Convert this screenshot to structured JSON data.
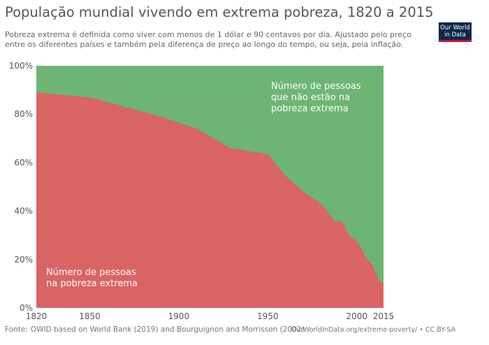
{
  "header": {
    "title": "População mundial vivendo em extrema pobreza, 1820 a 2015",
    "subtitle": "Pobreza extrema é definida como viver com menos de 1 dólar e 90 centavos por dia. Ajustado pelo preço entre os diferentes países e também pela diferença de preço ao longo do tempo, ou seja, pela inflação.",
    "logo_line1": "Our World",
    "logo_line2": "in Data"
  },
  "footer": {
    "source_label": "Fonte:",
    "source_text": "OWID based on World Bank (2019) and Bourguignon and Morrisson (2002)",
    "credit": "OurWorldInData.org/extreme-poverty/ • CC BY-SA"
  },
  "colors": {
    "poverty": "#d96464",
    "not_poverty": "#6db573"
  },
  "chart_data": {
    "type": "area",
    "stacked": true,
    "title": "População mundial vivendo em extrema pobreza, 1820 a 2015",
    "xlim": [
      1820,
      2015
    ],
    "ylim": [
      0,
      100
    ],
    "x_ticks": [
      "1820",
      "1850",
      "1900",
      "1950",
      "2000",
      "2015"
    ],
    "x_tick_values": [
      1820,
      1850,
      1900,
      1950,
      2000,
      2015
    ],
    "y_ticks": [
      "0%",
      "20%",
      "40%",
      "60%",
      "80%",
      "100%"
    ],
    "y_tick_values": [
      0,
      20,
      40,
      60,
      80,
      100
    ],
    "series": [
      {
        "name": "Número de pessoas na pobreza extrema",
        "label_lines": [
          "Número de pessoas",
          "na pobreza extrema"
        ],
        "x": [
          1820,
          1850,
          1870,
          1890,
          1910,
          1929,
          1950,
          1960,
          1970,
          1980,
          1985,
          1988,
          1990,
          1992,
          1993,
          1996,
          1999,
          2002,
          2005,
          2008,
          2010,
          2011,
          2013,
          2015
        ],
        "values": [
          89,
          87,
          83,
          79,
          74,
          66,
          63.5,
          54.5,
          48,
          43,
          38.5,
          35.5,
          35.8,
          35.2,
          34,
          29.5,
          28.5,
          25.5,
          21,
          18.5,
          16,
          14,
          11,
          10
        ]
      },
      {
        "name": "Número de pessoas que não estão na pobreza extrema",
        "label_lines": [
          "Número de pessoas",
          "que não estão na",
          "pobreza extrema"
        ]
      }
    ]
  }
}
